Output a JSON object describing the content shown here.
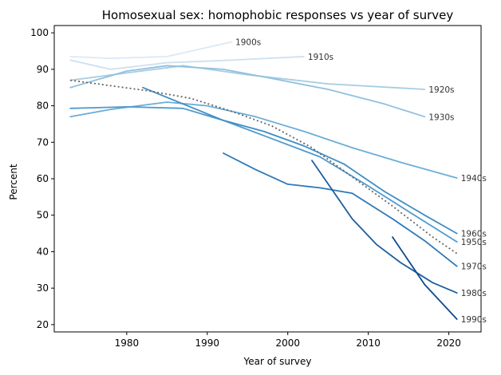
{
  "chart_data": {
    "type": "line",
    "title": "Homosexual sex: homophobic responses vs year of survey",
    "xlabel": "Year of survey",
    "ylabel": "Percent",
    "xlim": [
      1971,
      2024
    ],
    "ylim": [
      18,
      102
    ],
    "xticks": [
      1980,
      1990,
      2000,
      2010,
      2020
    ],
    "yticks": [
      20,
      30,
      40,
      50,
      60,
      70,
      80,
      90,
      100
    ],
    "grid": false,
    "series": [
      {
        "name": "1900s",
        "color": "#dbe9f6",
        "x": [
          1973,
          1978,
          1985,
          1993
        ],
        "y": [
          93.5,
          93,
          93.5,
          97.5
        ]
      },
      {
        "name": "1910s",
        "color": "#cddff0",
        "x": [
          1973,
          1978,
          1985,
          1993,
          2002
        ],
        "y": [
          92.5,
          90,
          91.8,
          92.5,
          93.5
        ]
      },
      {
        "name": "1920s",
        "color": "#a6cde3",
        "x": [
          1973,
          1980,
          1987,
          1995,
          2005,
          2017
        ],
        "y": [
          87,
          89,
          91,
          88.5,
          86,
          84.5
        ]
      },
      {
        "name": "1930s",
        "color": "#90c0df",
        "x": [
          1973,
          1980,
          1985,
          1992,
          1998,
          2005,
          2012,
          2017
        ],
        "y": [
          85,
          89.5,
          91,
          90,
          87.5,
          84.5,
          80.5,
          77
        ]
      },
      {
        "name": "1940s",
        "color": "#6baed6",
        "x": [
          1973,
          1978,
          1985,
          1990,
          1996,
          2002,
          2008,
          2014,
          2021
        ],
        "y": [
          77,
          79,
          81,
          80,
          77,
          73,
          68.5,
          64.5,
          60.2
        ]
      },
      {
        "name": "1950s",
        "color": "#4f9ad0",
        "x": [
          1973,
          1980,
          1987,
          1992,
          1998,
          2004,
          2010,
          2015,
          2021
        ],
        "y": [
          79.3,
          79.7,
          79.3,
          76,
          71,
          66,
          58,
          51,
          42.7
        ]
      },
      {
        "name": "1960s",
        "color": "#3e8ec4",
        "x": [
          1982,
          1987,
          1992,
          1997,
          2002,
          2007,
          2012,
          2017,
          2021
        ],
        "y": [
          85,
          80.5,
          76,
          73,
          69,
          64,
          56.5,
          50,
          45
        ]
      },
      {
        "name": "1970s",
        "color": "#2c79b8",
        "x": [
          1992,
          1996,
          2000,
          2004,
          2008,
          2013,
          2017,
          2021
        ],
        "y": [
          67,
          62.5,
          58.5,
          57.5,
          56,
          49,
          43,
          36
        ]
      },
      {
        "name": "1980s",
        "color": "#1c5f9f",
        "x": [
          2003,
          2008,
          2011,
          2014,
          2018,
          2021
        ],
        "y": [
          65,
          49,
          42,
          37,
          31.5,
          28.7
        ]
      },
      {
        "name": "1990s",
        "color": "#0b4a8f",
        "x": [
          2013,
          2017,
          2021
        ],
        "y": [
          44,
          31,
          21.5
        ]
      }
    ],
    "average": {
      "style": "dotted",
      "color": "#666666",
      "x": [
        1973,
        1978,
        1983,
        1988,
        1993,
        1998,
        2003,
        2008,
        2013,
        2018,
        2021
      ],
      "y": [
        87,
        85.5,
        84,
        82,
        78.5,
        74.5,
        68.5,
        60.5,
        52.5,
        44,
        39.5
      ]
    }
  }
}
